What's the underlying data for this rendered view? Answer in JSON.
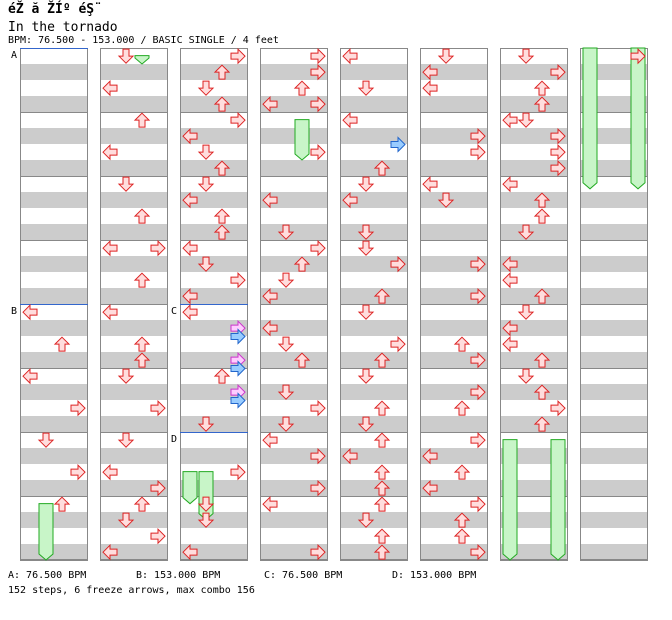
{
  "song": {
    "title_raw": "éŽ ă ŽÍº éŞ¨",
    "title": "In the tornado",
    "bpm_line": "BPM: 76.500 - 153.000 / BASIC SINGLE / 4 feet"
  },
  "colors": {
    "stripe": "#cccccc",
    "border": "#888888",
    "arrow_red_fill": "#ffdddd",
    "arrow_red_stroke": "#dd2222",
    "arrow_blue_fill": "#99ccff",
    "arrow_blue_stroke": "#2266cc",
    "arrow_pink_fill": "#ffccff",
    "arrow_pink_stroke": "#cc33cc",
    "freeze_fill": "#c8f5c8",
    "freeze_stroke": "#22aa22",
    "marker_line": "#3366cc"
  },
  "chart_data": {
    "type": "dance-step-chart",
    "columns": 8,
    "measures_per_column": 8,
    "lanes": [
      "left",
      "down",
      "up",
      "right"
    ],
    "tempo_markers": [
      {
        "label": "A",
        "column": 0,
        "measure": 0,
        "bpm": "76.500 BPM"
      },
      {
        "label": "B",
        "column": 0,
        "measure": 4,
        "bpm": "153.000 BPM"
      },
      {
        "label": "C",
        "column": 2,
        "measure": 4,
        "bpm": "76.500 BPM"
      },
      {
        "label": "D",
        "column": 2,
        "measure": 6,
        "bpm": "153.000 BPM"
      }
    ],
    "notes": [
      [
        0,
        4.12,
        "L",
        "r"
      ],
      [
        0,
        4.62,
        "U",
        "r"
      ],
      [
        0,
        5.12,
        "L",
        "r"
      ],
      [
        0,
        5.62,
        "R",
        "r"
      ],
      [
        0,
        6.12,
        "D",
        "r"
      ],
      [
        0,
        6.62,
        "R",
        "r"
      ],
      [
        0,
        7.12,
        "U",
        "r"
      ],
      [
        1,
        0.12,
        "D",
        "r"
      ],
      [
        1,
        0.62,
        "L",
        "r"
      ],
      [
        1,
        1.12,
        "U",
        "r"
      ],
      [
        1,
        1.62,
        "L",
        "r"
      ],
      [
        1,
        2.12,
        "D",
        "r"
      ],
      [
        1,
        2.62,
        "U",
        "r"
      ],
      [
        1,
        3.12,
        "L",
        "r"
      ],
      [
        1,
        3.12,
        "R",
        "r"
      ],
      [
        1,
        3.62,
        "U",
        "r"
      ],
      [
        1,
        4.12,
        "L",
        "r"
      ],
      [
        1,
        4.62,
        "U",
        "r"
      ],
      [
        1,
        4.87,
        "U",
        "r"
      ],
      [
        1,
        5.12,
        "D",
        "r"
      ],
      [
        1,
        5.62,
        "R",
        "r"
      ],
      [
        1,
        6.12,
        "D",
        "r"
      ],
      [
        1,
        6.62,
        "L",
        "r"
      ],
      [
        1,
        6.87,
        "R",
        "r"
      ],
      [
        1,
        7.12,
        "U",
        "r"
      ],
      [
        1,
        7.37,
        "D",
        "r"
      ],
      [
        1,
        7.62,
        "R",
        "r"
      ],
      [
        1,
        7.87,
        "L",
        "r"
      ],
      [
        2,
        0.12,
        "R",
        "r"
      ],
      [
        2,
        0.37,
        "U",
        "r"
      ],
      [
        2,
        0.62,
        "D",
        "r"
      ],
      [
        2,
        0.87,
        "U",
        "r"
      ],
      [
        2,
        1.12,
        "R",
        "r"
      ],
      [
        2,
        1.37,
        "L",
        "r"
      ],
      [
        2,
        1.62,
        "D",
        "r"
      ],
      [
        2,
        1.87,
        "U",
        "r"
      ],
      [
        2,
        2.12,
        "D",
        "r"
      ],
      [
        2,
        2.37,
        "L",
        "r"
      ],
      [
        2,
        2.62,
        "U",
        "r"
      ],
      [
        2,
        2.87,
        "U",
        "r"
      ],
      [
        2,
        3.12,
        "L",
        "r"
      ],
      [
        2,
        3.37,
        "D",
        "r"
      ],
      [
        2,
        3.62,
        "R",
        "r"
      ],
      [
        2,
        3.87,
        "L",
        "r"
      ],
      [
        2,
        4.12,
        "L",
        "r"
      ],
      [
        2,
        4.37,
        "R",
        "p"
      ],
      [
        2,
        4.5,
        "R",
        "b"
      ],
      [
        2,
        4.87,
        "R",
        "p"
      ],
      [
        2,
        5.0,
        "R",
        "b"
      ],
      [
        2,
        5.12,
        "U",
        "r"
      ],
      [
        2,
        5.37,
        "R",
        "p"
      ],
      [
        2,
        5.5,
        "R",
        "b"
      ],
      [
        2,
        5.87,
        "D",
        "r"
      ],
      [
        2,
        6.62,
        "R",
        "r"
      ],
      [
        2,
        7.12,
        "D",
        "r"
      ],
      [
        2,
        7.37,
        "D",
        "r"
      ],
      [
        2,
        7.87,
        "L",
        "r"
      ],
      [
        3,
        0.12,
        "R",
        "r"
      ],
      [
        3,
        0.37,
        "R",
        "r"
      ],
      [
        3,
        0.62,
        "U",
        "r"
      ],
      [
        3,
        0.87,
        "L",
        "r"
      ],
      [
        3,
        0.87,
        "R",
        "r"
      ],
      [
        3,
        1.62,
        "R",
        "r"
      ],
      [
        3,
        2.37,
        "L",
        "r"
      ],
      [
        3,
        2.87,
        "D",
        "r"
      ],
      [
        3,
        3.12,
        "R",
        "r"
      ],
      [
        3,
        3.37,
        "U",
        "r"
      ],
      [
        3,
        3.62,
        "D",
        "r"
      ],
      [
        3,
        3.87,
        "L",
        "r"
      ],
      [
        3,
        4.37,
        "L",
        "r"
      ],
      [
        3,
        4.62,
        "D",
        "r"
      ],
      [
        3,
        4.87,
        "U",
        "r"
      ],
      [
        3,
        5.37,
        "D",
        "r"
      ],
      [
        3,
        5.62,
        "R",
        "r"
      ],
      [
        3,
        5.87,
        "D",
        "r"
      ],
      [
        3,
        6.12,
        "L",
        "r"
      ],
      [
        3,
        6.37,
        "R",
        "r"
      ],
      [
        3,
        6.87,
        "R",
        "r"
      ],
      [
        3,
        7.12,
        "L",
        "r"
      ],
      [
        3,
        7.87,
        "R",
        "r"
      ],
      [
        4,
        0.12,
        "L",
        "r"
      ],
      [
        4,
        0.62,
        "D",
        "r"
      ],
      [
        4,
        1.12,
        "L",
        "r"
      ],
      [
        4,
        1.5,
        "R",
        "b"
      ],
      [
        4,
        1.87,
        "U",
        "r"
      ],
      [
        4,
        2.12,
        "D",
        "r"
      ],
      [
        4,
        2.37,
        "L",
        "r"
      ],
      [
        4,
        2.87,
        "D",
        "r"
      ],
      [
        4,
        3.12,
        "D",
        "r"
      ],
      [
        4,
        3.37,
        "R",
        "r"
      ],
      [
        4,
        3.87,
        "U",
        "r"
      ],
      [
        4,
        4.12,
        "D",
        "r"
      ],
      [
        4,
        4.62,
        "R",
        "r"
      ],
      [
        4,
        4.87,
        "U",
        "r"
      ],
      [
        4,
        5.12,
        "D",
        "r"
      ],
      [
        4,
        5.62,
        "U",
        "r"
      ],
      [
        4,
        5.87,
        "D",
        "r"
      ],
      [
        4,
        6.12,
        "U",
        "r"
      ],
      [
        4,
        6.37,
        "L",
        "r"
      ],
      [
        4,
        6.62,
        "U",
        "r"
      ],
      [
        4,
        6.87,
        "U",
        "r"
      ],
      [
        4,
        7.12,
        "U",
        "r"
      ],
      [
        4,
        7.37,
        "D",
        "r"
      ],
      [
        4,
        7.62,
        "U",
        "r"
      ],
      [
        4,
        7.87,
        "U",
        "r"
      ],
      [
        5,
        0.12,
        "D",
        "r"
      ],
      [
        5,
        0.37,
        "L",
        "r"
      ],
      [
        5,
        0.62,
        "L",
        "r"
      ],
      [
        5,
        1.37,
        "R",
        "r"
      ],
      [
        5,
        1.62,
        "R",
        "r"
      ],
      [
        5,
        2.12,
        "L",
        "r"
      ],
      [
        5,
        2.37,
        "D",
        "r"
      ],
      [
        5,
        3.37,
        "R",
        "r"
      ],
      [
        5,
        3.87,
        "R",
        "r"
      ],
      [
        5,
        4.62,
        "U",
        "r"
      ],
      [
        5,
        4.87,
        "R",
        "r"
      ],
      [
        5,
        5.37,
        "R",
        "r"
      ],
      [
        5,
        5.62,
        "U",
        "r"
      ],
      [
        5,
        6.12,
        "R",
        "r"
      ],
      [
        5,
        6.37,
        "L",
        "r"
      ],
      [
        5,
        6.62,
        "U",
        "r"
      ],
      [
        5,
        6.87,
        "L",
        "r"
      ],
      [
        5,
        7.12,
        "R",
        "r"
      ],
      [
        5,
        7.37,
        "U",
        "r"
      ],
      [
        5,
        7.62,
        "U",
        "r"
      ],
      [
        5,
        7.87,
        "R",
        "r"
      ],
      [
        6,
        0.12,
        "D",
        "r"
      ],
      [
        6,
        0.37,
        "R",
        "r"
      ],
      [
        6,
        0.62,
        "U",
        "r"
      ],
      [
        6,
        0.87,
        "U",
        "r"
      ],
      [
        6,
        1.12,
        "L",
        "r"
      ],
      [
        6,
        1.12,
        "D",
        "r"
      ],
      [
        6,
        1.37,
        "R",
        "r"
      ],
      [
        6,
        1.62,
        "R",
        "r"
      ],
      [
        6,
        1.87,
        "R",
        "r"
      ],
      [
        6,
        2.12,
        "L",
        "r"
      ],
      [
        6,
        2.37,
        "U",
        "r"
      ],
      [
        6,
        2.62,
        "U",
        "r"
      ],
      [
        6,
        2.87,
        "D",
        "r"
      ],
      [
        6,
        3.37,
        "L",
        "r"
      ],
      [
        6,
        3.62,
        "L",
        "r"
      ],
      [
        6,
        3.87,
        "U",
        "r"
      ],
      [
        6,
        4.12,
        "D",
        "r"
      ],
      [
        6,
        4.37,
        "L",
        "r"
      ],
      [
        6,
        4.62,
        "L",
        "r"
      ],
      [
        6,
        4.87,
        "U",
        "r"
      ],
      [
        6,
        5.12,
        "D",
        "r"
      ],
      [
        6,
        5.37,
        "U",
        "r"
      ],
      [
        6,
        5.62,
        "R",
        "r"
      ],
      [
        6,
        5.87,
        "U",
        "r"
      ],
      [
        7,
        0.12,
        "R",
        "r"
      ]
    ],
    "freezes": [
      [
        0,
        7.12,
        8.0,
        "D"
      ],
      [
        1,
        0.12,
        0.25,
        "U"
      ],
      [
        2,
        6.62,
        7.12,
        "L"
      ],
      [
        3,
        1.12,
        1.75,
        "U"
      ],
      [
        2,
        6.62,
        7.37,
        "D"
      ],
      [
        6,
        6.12,
        8.0,
        "L"
      ],
      [
        6,
        6.12,
        8.0,
        "R"
      ],
      [
        7,
        0.0,
        2.2,
        "L"
      ],
      [
        7,
        0.0,
        2.2,
        "R"
      ]
    ]
  },
  "footer": {
    "a": "A: 76.500 BPM",
    "b": "B: 153.000 BPM",
    "c": "C: 76.500 BPM",
    "d": "D: 153.000 BPM",
    "stats": "152 steps, 6 freeze arrows, max combo 156"
  }
}
